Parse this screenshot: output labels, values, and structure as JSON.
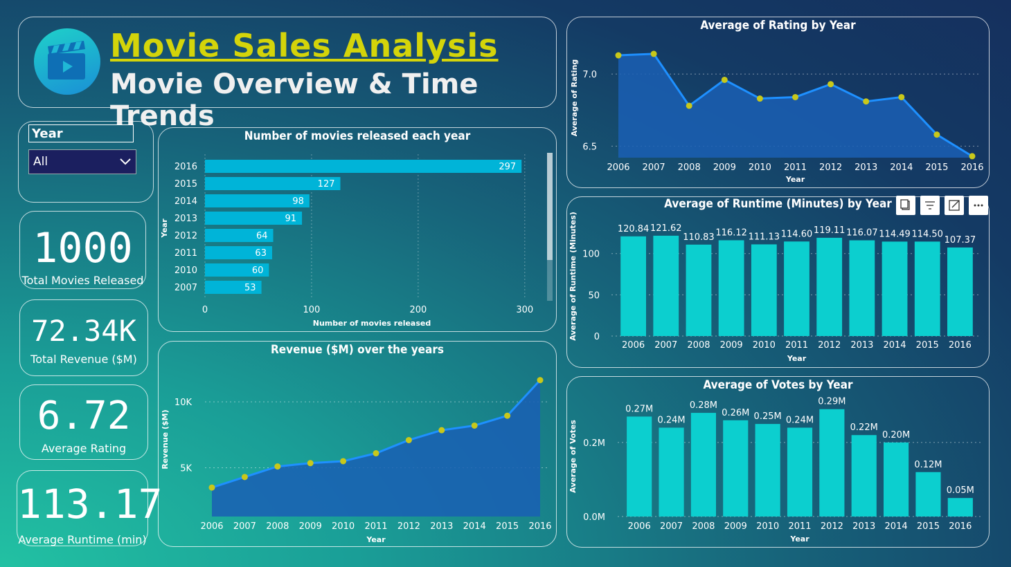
{
  "header": {
    "title": "Movie Sales Analysis ",
    "subtitle": "Movie Overview & Time Trends",
    "logo_icon": "clapperboard-icon"
  },
  "filter": {
    "label": "Year",
    "selected": "All",
    "icon": "chevron-down-icon"
  },
  "kpis": {
    "total_movies": {
      "value": "1000",
      "label": "Total Movies Released"
    },
    "total_revenue": {
      "value": "72.34K",
      "label": "Total Revenue ($M)"
    },
    "avg_rating": {
      "value": "6.72",
      "label": "Average Rating"
    },
    "avg_runtime": {
      "value": "113.17",
      "label": "Average Runtime (min)"
    }
  },
  "colors": {
    "bar": "#00b4d8",
    "teal_bar": "#0ccfcf",
    "line": "#1e90ff",
    "area": "#1a5fb4",
    "marker": "#c8c81a",
    "title_yellow": "#d4d40a"
  },
  "chart_data": [
    {
      "id": "movies-per-year",
      "type": "bar",
      "orientation": "horizontal",
      "title": "Number of movies released each year",
      "xlabel": "Number of movies released",
      "ylabel": "Year",
      "categories": [
        "2016",
        "2015",
        "2014",
        "2013",
        "2012",
        "2011",
        "2010",
        "2007"
      ],
      "values": [
        297,
        127,
        98,
        91,
        64,
        63,
        60,
        53
      ],
      "xticks": [
        "0",
        "100",
        "200",
        "300"
      ],
      "xlim": [
        0,
        330
      ],
      "grid": true
    },
    {
      "id": "revenue-over-years",
      "type": "area",
      "title": "Revenue ($M) over the years",
      "xlabel": "Year",
      "ylabel": "Revenue ($M)",
      "x": [
        "2006",
        "2007",
        "2008",
        "2009",
        "2010",
        "2011",
        "2012",
        "2013",
        "2014",
        "2015",
        "2016"
      ],
      "values": [
        3500,
        4300,
        5100,
        5350,
        5500,
        6100,
        7100,
        7850,
        8200,
        8950,
        11650
      ],
      "yticks": [
        {
          "v": 5000,
          "label": "5K"
        },
        {
          "v": 10000,
          "label": "10K"
        }
      ],
      "ylim": [
        1300,
        13000
      ],
      "grid": true
    },
    {
      "id": "avg-rating-by-year",
      "type": "area",
      "title": "Average of Rating by Year",
      "xlabel": "Year",
      "ylabel": "Average of Rating",
      "x": [
        "2006",
        "2007",
        "2008",
        "2009",
        "2010",
        "2011",
        "2012",
        "2013",
        "2014",
        "2015",
        "2016"
      ],
      "values": [
        7.13,
        7.14,
        6.78,
        6.96,
        6.83,
        6.84,
        6.93,
        6.81,
        6.84,
        6.58,
        6.43
      ],
      "yticks": [
        {
          "v": 6.5,
          "label": "6.5"
        },
        {
          "v": 7.0,
          "label": "7.0"
        }
      ],
      "ylim": [
        6.42,
        7.25
      ],
      "grid": true
    },
    {
      "id": "avg-runtime-by-year",
      "type": "bar",
      "title": "Average of Runtime (Minutes) by Year",
      "xlabel": "Year",
      "ylabel": "Average of Runtime (Minutes)",
      "categories": [
        "2006",
        "2007",
        "2008",
        "2009",
        "2010",
        "2011",
        "2012",
        "2013",
        "2014",
        "2015",
        "2016"
      ],
      "values": [
        120.84,
        121.62,
        110.83,
        116.12,
        111.13,
        114.6,
        119.11,
        116.07,
        114.49,
        114.5,
        107.37
      ],
      "labels": [
        "120.84",
        "121.62",
        "110.83",
        "116.12",
        "111.13",
        "114.60",
        "119.11",
        "116.07",
        "114.49",
        "114.50",
        "107.37"
      ],
      "yticks": [
        {
          "v": 0,
          "label": "0"
        },
        {
          "v": 50,
          "label": "50"
        },
        {
          "v": 100,
          "label": "100"
        }
      ],
      "ylim": [
        0,
        145
      ],
      "grid": true
    },
    {
      "id": "avg-votes-by-year",
      "type": "bar",
      "title": "Average of Votes by Year",
      "xlabel": "Year",
      "ylabel": "Average of Votes",
      "categories": [
        "2006",
        "2007",
        "2008",
        "2009",
        "2010",
        "2011",
        "2012",
        "2013",
        "2014",
        "2015",
        "2016"
      ],
      "values": [
        0.27,
        0.24,
        0.28,
        0.26,
        0.25,
        0.24,
        0.29,
        0.22,
        0.2,
        0.12,
        0.05
      ],
      "labels": [
        "0.27M",
        "0.24M",
        "0.28M",
        "0.26M",
        "0.25M",
        "0.24M",
        "0.29M",
        "0.22M",
        "0.20M",
        "0.12M",
        "0.05M"
      ],
      "yticks": [
        {
          "v": 0,
          "label": "0.0M"
        },
        {
          "v": 0.2,
          "label": "0.2M"
        }
      ],
      "ylim": [
        0,
        0.325
      ],
      "grid": true
    }
  ],
  "visual_toolbar": [
    {
      "icon": "copy-icon"
    },
    {
      "icon": "filter-icon"
    },
    {
      "icon": "focus-mode-icon"
    },
    {
      "icon": "more-options-icon"
    }
  ]
}
